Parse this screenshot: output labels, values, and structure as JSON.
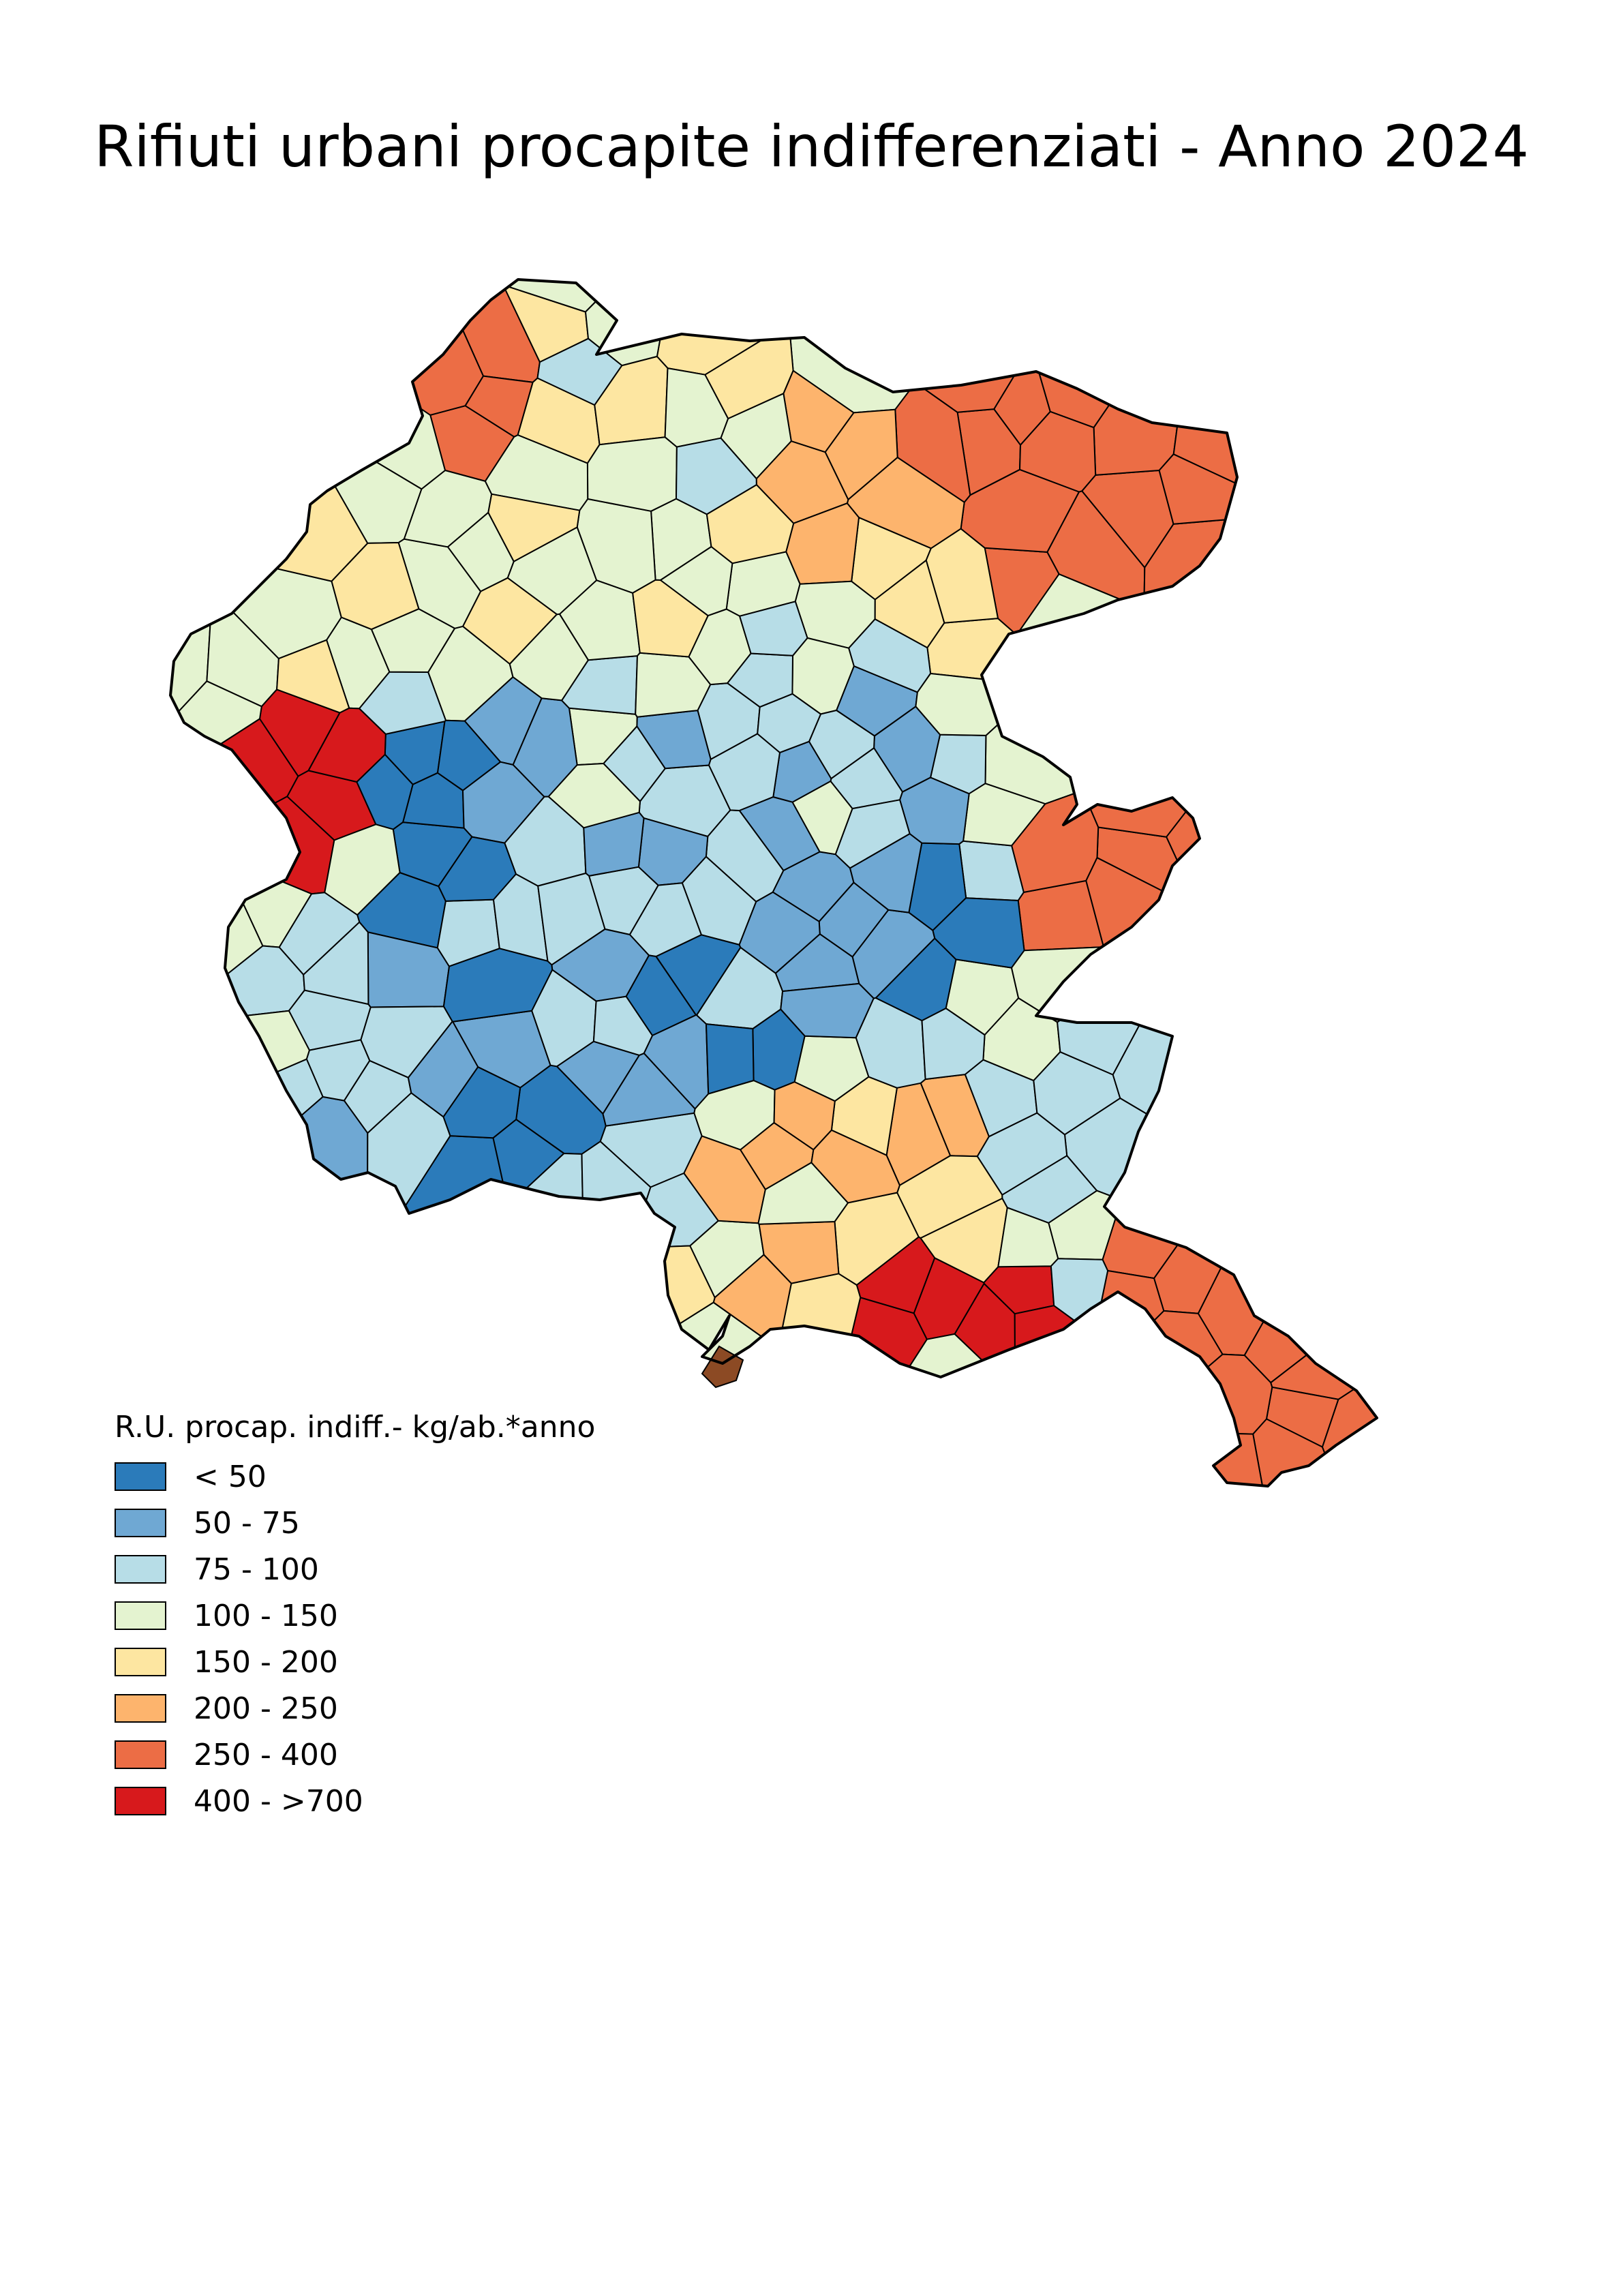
{
  "title": "Rifiuti urbani procapite indifferenziati - Anno 2024",
  "legend": {
    "title": "R.U. procap. indiff.- kg/ab.*anno",
    "items": [
      {
        "label": "< 50",
        "color": "#2b7bba"
      },
      {
        "label": "50 - 75",
        "color": "#6fa8d3"
      },
      {
        "label": "75 - 100",
        "color": "#b7dde7"
      },
      {
        "label": "100 - 150",
        "color": "#e4f3d0"
      },
      {
        "label": "150 - 200",
        "color": "#fde6a1"
      },
      {
        "label": "200 - 250",
        "color": "#fdb46d"
      },
      {
        "label": "250 - 400",
        "color": "#ec6d45"
      },
      {
        "label": "400 - >700",
        "color": "#d7191c"
      }
    ]
  },
  "colors": {
    "outline": "#000000",
    "unclassified": "#8c4a24"
  }
}
